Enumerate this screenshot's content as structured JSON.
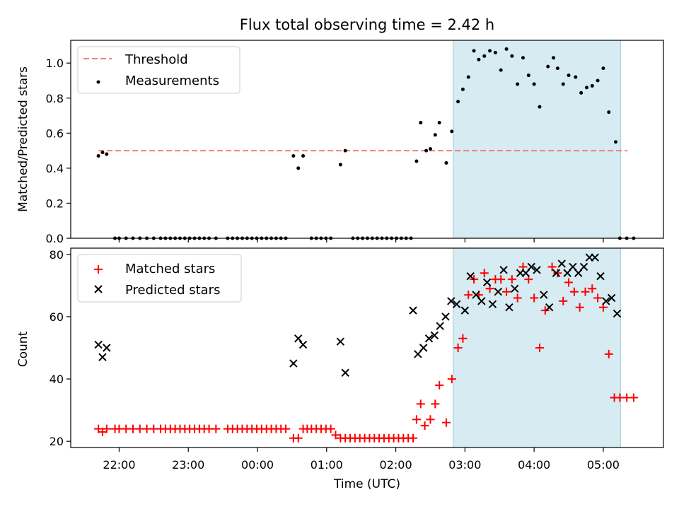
{
  "colors": {
    "threshold": "#f08080",
    "measurement": "#000000",
    "matched": "#ff0000",
    "predicted": "#000000",
    "highlight": "#add8e6"
  },
  "chart_data": [
    {
      "type": "scatter",
      "title": "Flux total observing time = 2.42 h",
      "xlabel": "",
      "ylabel": "Matched/Predicted stars",
      "x_unit": "hours since 00:00 UTC",
      "xlim": [
        -2.7,
        5.87
      ],
      "ylim": [
        0,
        1.13
      ],
      "yticks": [
        0.0,
        0.2,
        0.4,
        0.6,
        0.8,
        1.0
      ],
      "ytick_labels": [
        "0.0",
        "0.2",
        "0.4",
        "0.6",
        "0.8",
        "1.0"
      ],
      "xticks": [
        -2,
        -1,
        0,
        1,
        2,
        3,
        4,
        5
      ],
      "highlight_range": [
        2.83,
        5.25
      ],
      "legend": {
        "position": "top-left",
        "entries": [
          "Threshold",
          "Measurements"
        ]
      },
      "series": [
        {
          "name": "Threshold",
          "style": "dashed-line",
          "x": [
            -2.3,
            5.35
          ],
          "y": [
            0.5,
            0.5
          ]
        },
        {
          "name": "Measurements",
          "style": "dot",
          "x": [
            -2.3,
            -2.24,
            -2.18,
            -2.06,
            -2.0,
            -1.9,
            -1.8,
            -1.7,
            -1.6,
            -1.5,
            -1.4,
            -1.33,
            -1.26,
            -1.19,
            -1.12,
            -1.05,
            -0.98,
            -0.91,
            -0.84,
            -0.77,
            -0.7,
            -0.6,
            -0.43,
            -0.36,
            -0.29,
            -0.22,
            -0.15,
            -0.08,
            -0.01,
            0.06,
            0.13,
            0.2,
            0.27,
            0.34,
            0.41,
            0.52,
            0.59,
            0.66,
            0.78,
            0.85,
            0.92,
            0.99,
            1.06,
            1.2,
            1.27,
            1.38,
            1.45,
            1.52,
            1.59,
            1.66,
            1.73,
            1.8,
            1.87,
            1.94,
            2.01,
            2.08,
            2.15,
            2.22,
            2.3,
            2.36,
            2.44,
            2.5,
            2.57,
            2.63,
            2.73,
            2.81,
            2.9,
            2.97,
            3.05,
            3.13,
            3.2,
            3.28,
            3.36,
            3.44,
            3.52,
            3.6,
            3.68,
            3.76,
            3.84,
            3.92,
            4.0,
            4.08,
            4.2,
            4.28,
            4.34,
            4.42,
            4.5,
            4.6,
            4.68,
            4.76,
            4.84,
            4.92,
            5.0,
            5.08,
            5.18,
            5.24,
            5.34,
            5.44
          ],
          "y": [
            0.47,
            0.49,
            0.48,
            0,
            0,
            0,
            0,
            0,
            0,
            0,
            0,
            0,
            0,
            0,
            0,
            0,
            0,
            0,
            0,
            0,
            0,
            0,
            0,
            0,
            0,
            0,
            0,
            0,
            0,
            0,
            0,
            0,
            0,
            0,
            0,
            0.47,
            0.4,
            0.47,
            0,
            0,
            0,
            0,
            0,
            0.42,
            0.5,
            0,
            0,
            0,
            0,
            0,
            0,
            0,
            0,
            0,
            0,
            0,
            0,
            0,
            0.44,
            0.66,
            0.5,
            0.51,
            0.59,
            0.66,
            0.43,
            0.61,
            0.78,
            0.85,
            0.92,
            1.07,
            1.02,
            1.04,
            1.07,
            1.06,
            0.96,
            1.08,
            1.04,
            0.88,
            1.03,
            0.93,
            0.88,
            0.75,
            0.98,
            1.03,
            0.97,
            0.88,
            0.93,
            0.92,
            0.83,
            0.86,
            0.87,
            0.9,
            0.97,
            0.72,
            0.55,
            0,
            0,
            0
          ]
        }
      ]
    },
    {
      "type": "scatter",
      "title": "",
      "xlabel": "Time (UTC)",
      "ylabel": "Count",
      "x_unit": "hours since 00:00 UTC",
      "xlim": [
        -2.7,
        5.87
      ],
      "ylim": [
        18,
        82
      ],
      "yticks": [
        20,
        40,
        60,
        80
      ],
      "ytick_labels": [
        "20",
        "40",
        "60",
        "80"
      ],
      "xticks": [
        -2,
        -1,
        0,
        1,
        2,
        3,
        4,
        5
      ],
      "xtick_labels": [
        "22:00",
        "23:00",
        "00:00",
        "01:00",
        "02:00",
        "03:00",
        "04:00",
        "05:00"
      ],
      "highlight_range": [
        2.83,
        5.25
      ],
      "legend": {
        "position": "top-left",
        "entries": [
          "Matched stars",
          "Predicted stars"
        ]
      },
      "series": [
        {
          "name": "Matched stars",
          "marker": "plus",
          "x": [
            -2.3,
            -2.24,
            -2.18,
            -2.06,
            -2.0,
            -1.9,
            -1.8,
            -1.7,
            -1.6,
            -1.5,
            -1.4,
            -1.33,
            -1.26,
            -1.19,
            -1.12,
            -1.05,
            -0.98,
            -0.91,
            -0.84,
            -0.77,
            -0.7,
            -0.6,
            -0.43,
            -0.36,
            -0.29,
            -0.22,
            -0.15,
            -0.08,
            -0.01,
            0.06,
            0.13,
            0.2,
            0.27,
            0.34,
            0.41,
            0.52,
            0.59,
            0.66,
            0.72,
            0.78,
            0.85,
            0.92,
            0.99,
            1.06,
            1.13,
            1.2,
            1.27,
            1.34,
            1.41,
            1.48,
            1.55,
            1.62,
            1.69,
            1.76,
            1.83,
            1.9,
            1.97,
            2.04,
            2.11,
            2.18,
            2.25,
            2.3,
            2.36,
            2.42,
            2.5,
            2.57,
            2.63,
            2.73,
            2.81,
            2.9,
            2.97,
            3.05,
            3.13,
            3.2,
            3.28,
            3.36,
            3.44,
            3.52,
            3.6,
            3.68,
            3.76,
            3.84,
            3.92,
            4.0,
            4.08,
            4.16,
            4.26,
            4.34,
            4.42,
            4.5,
            4.58,
            4.66,
            4.74,
            4.84,
            4.92,
            5.0,
            5.08,
            5.16,
            5.24,
            5.34,
            5.44
          ],
          "y": [
            24,
            23,
            24,
            24,
            24,
            24,
            24,
            24,
            24,
            24,
            24,
            24,
            24,
            24,
            24,
            24,
            24,
            24,
            24,
            24,
            24,
            24,
            24,
            24,
            24,
            24,
            24,
            24,
            24,
            24,
            24,
            24,
            24,
            24,
            24,
            21,
            21,
            24,
            24,
            24,
            24,
            24,
            24,
            24,
            22,
            21,
            21,
            21,
            21,
            21,
            21,
            21,
            21,
            21,
            21,
            21,
            21,
            21,
            21,
            21,
            21,
            27,
            32,
            25,
            27,
            32,
            38,
            26,
            40,
            50,
            53,
            67,
            72,
            67,
            74,
            69,
            72,
            72,
            68,
            72,
            66,
            76,
            72,
            66,
            50,
            62,
            76,
            74,
            65,
            71,
            68,
            63,
            68,
            69,
            66,
            63,
            48,
            34,
            34,
            34,
            34
          ]
        },
        {
          "name": "Predicted stars",
          "marker": "x",
          "x": [
            -2.3,
            -2.24,
            -2.18,
            0.52,
            0.59,
            0.66,
            1.2,
            1.27,
            2.25,
            2.32,
            2.4,
            2.48,
            2.56,
            2.64,
            2.72,
            2.8,
            2.88,
            3.0,
            3.08,
            3.16,
            3.24,
            3.32,
            3.4,
            3.48,
            3.56,
            3.64,
            3.72,
            3.8,
            3.88,
            3.96,
            4.04,
            4.14,
            4.22,
            4.32,
            4.4,
            4.48,
            4.56,
            4.64,
            4.72,
            4.8,
            4.88,
            4.96,
            5.04,
            5.12,
            5.2
          ],
          "y": [
            51,
            47,
            50,
            45,
            53,
            51,
            52,
            42,
            62,
            48,
            50,
            53,
            54,
            57,
            60,
            65,
            64,
            62,
            73,
            67,
            65,
            71,
            64,
            68,
            75,
            63,
            69,
            74,
            74,
            76,
            75,
            67,
            63,
            74,
            77,
            74,
            76,
            74,
            76,
            79,
            79,
            73,
            65,
            66,
            61
          ]
        }
      ]
    }
  ]
}
